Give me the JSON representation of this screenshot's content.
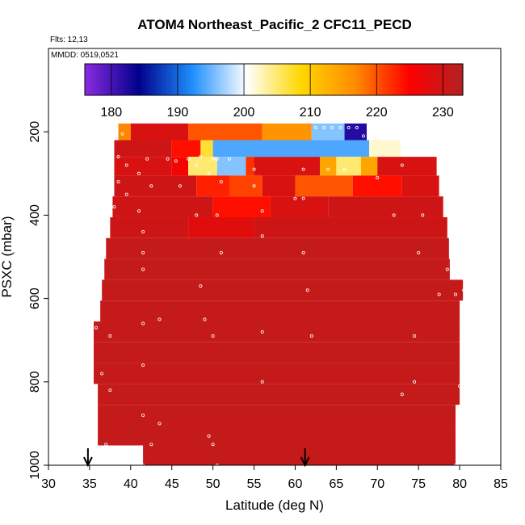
{
  "chart_data": {
    "type": "heatmap",
    "title": "ATOM4 Northeast_Pacific_2 CFC11_PECD",
    "annotations": {
      "flights": "Flts: 12,13",
      "dates": "MMDD: 0519,0521"
    },
    "xlabel": "Latitude (deg N)",
    "ylabel": "PSXC (mbar)",
    "xlim": [
      30,
      85
    ],
    "ylim": [
      1000,
      0
    ],
    "xticks": [
      "30",
      "35",
      "40",
      "45",
      "50",
      "55",
      "60",
      "65",
      "70",
      "75",
      "80",
      "85"
    ],
    "yticks": [
      "200",
      "400",
      "600",
      "800",
      "1000"
    ],
    "colorbar": {
      "min": 176,
      "max": 233,
      "ticks": [
        "180",
        "190",
        "200",
        "210",
        "220",
        "230"
      ],
      "stops": [
        "#8b2be2",
        "#00008b",
        "#1e90ff",
        "#ffffff",
        "#ffd700",
        "#ff8c00",
        "#ff0000",
        "#b22222"
      ]
    },
    "layers": [
      {
        "p": 200,
        "segments": [
          {
            "x0": 38.5,
            "x1": 40,
            "v": 217
          },
          {
            "x0": 40,
            "x1": 47,
            "v": 229
          },
          {
            "x0": 47,
            "x1": 56,
            "v": 220
          },
          {
            "x0": 56,
            "x1": 62,
            "v": 216
          },
          {
            "x0": 62,
            "x1": 66,
            "v": 196
          },
          {
            "x0": 66,
            "x1": 68.7,
            "v": 182
          }
        ]
      },
      {
        "p": 240,
        "segments": [
          {
            "x0": 38,
            "x1": 45,
            "v": 230
          },
          {
            "x0": 45,
            "x1": 48.5,
            "v": 224
          },
          {
            "x0": 48.5,
            "x1": 50,
            "v": 207
          },
          {
            "x0": 50,
            "x1": 69,
            "v": 194
          },
          {
            "x0": 69,
            "x1": 72.8,
            "v": 202
          }
        ]
      },
      {
        "p": 280,
        "segments": [
          {
            "x0": 38,
            "x1": 45,
            "v": 229
          },
          {
            "x0": 45,
            "x1": 47,
            "v": 226
          },
          {
            "x0": 47,
            "x1": 50.5,
            "v": 205
          },
          {
            "x0": 50.5,
            "x1": 54,
            "v": 196
          },
          {
            "x0": 54,
            "x1": 55,
            "v": 222
          },
          {
            "x0": 55,
            "x1": 63,
            "v": 229
          },
          {
            "x0": 63,
            "x1": 65,
            "v": 214
          },
          {
            "x0": 65,
            "x1": 68,
            "v": 205
          },
          {
            "x0": 68,
            "x1": 70,
            "v": 214
          },
          {
            "x0": 70,
            "x1": 77.2,
            "v": 229
          }
        ]
      },
      {
        "p": 330,
        "segments": [
          {
            "x0": 38,
            "x1": 48,
            "v": 230
          },
          {
            "x0": 48,
            "x1": 52,
            "v": 223
          },
          {
            "x0": 52,
            "x1": 56,
            "v": 221
          },
          {
            "x0": 56,
            "x1": 60,
            "v": 229
          },
          {
            "x0": 60,
            "x1": 67,
            "v": 220
          },
          {
            "x0": 67,
            "x1": 73,
            "v": 224
          },
          {
            "x0": 73,
            "x1": 77.5,
            "v": 229
          }
        ]
      },
      {
        "p": 380,
        "segments": [
          {
            "x0": 37.8,
            "x1": 50,
            "v": 230
          },
          {
            "x0": 50,
            "x1": 57,
            "v": 224
          },
          {
            "x0": 57,
            "x1": 64,
            "v": 229
          },
          {
            "x0": 64,
            "x1": 78,
            "v": 230
          }
        ]
      },
      {
        "p": 430,
        "segments": [
          {
            "x0": 37.5,
            "x1": 47,
            "v": 230
          },
          {
            "x0": 47,
            "x1": 55,
            "v": 228
          },
          {
            "x0": 55,
            "x1": 78.5,
            "v": 230
          }
        ]
      },
      {
        "p": 480,
        "segments": [
          {
            "x0": 37,
            "x1": 78.7,
            "v": 231
          }
        ]
      },
      {
        "p": 530,
        "segments": [
          {
            "x0": 36.8,
            "x1": 78.8,
            "v": 231
          }
        ]
      },
      {
        "p": 580,
        "segments": [
          {
            "x0": 36.5,
            "x1": 80.4,
            "v": 231
          }
        ]
      },
      {
        "p": 630,
        "segments": [
          {
            "x0": 36.3,
            "x1": 80,
            "v": 231
          }
        ]
      },
      {
        "p": 680,
        "segments": [
          {
            "x0": 35.5,
            "x1": 80,
            "v": 231
          }
        ]
      },
      {
        "p": 730,
        "segments": [
          {
            "x0": 35.5,
            "x1": 80,
            "v": 231
          }
        ]
      },
      {
        "p": 780,
        "segments": [
          {
            "x0": 35.5,
            "x1": 80,
            "v": 231
          }
        ]
      },
      {
        "p": 830,
        "segments": [
          {
            "x0": 36,
            "x1": 80,
            "v": 231
          }
        ]
      },
      {
        "p": 880,
        "segments": [
          {
            "x0": 36,
            "x1": 79.5,
            "v": 231
          }
        ]
      },
      {
        "p": 930,
        "segments": [
          {
            "x0": 36,
            "x1": 79.5,
            "v": 231
          }
        ]
      },
      {
        "p": 975,
        "segments": [
          {
            "x0": 41.5,
            "x1": 79.5,
            "v": 231
          }
        ]
      }
    ],
    "points": [
      [
        39,
        205
      ],
      [
        42,
        265
      ],
      [
        44.5,
        265
      ],
      [
        47,
        265
      ],
      [
        50,
        265
      ],
      [
        52,
        265
      ],
      [
        62.5,
        190
      ],
      [
        63.5,
        190
      ],
      [
        64.5,
        190
      ],
      [
        65.5,
        190
      ],
      [
        66.5,
        190
      ],
      [
        67.5,
        190
      ],
      [
        68.3,
        210
      ],
      [
        38.5,
        260
      ],
      [
        39.5,
        280
      ],
      [
        41,
        300
      ],
      [
        45.5,
        270
      ],
      [
        48,
        280
      ],
      [
        48.5,
        260
      ],
      [
        49.5,
        300
      ],
      [
        50.5,
        265
      ],
      [
        55,
        290
      ],
      [
        61,
        290
      ],
      [
        64,
        290
      ],
      [
        66,
        290
      ],
      [
        38.5,
        320
      ],
      [
        39.5,
        350
      ],
      [
        42.5,
        330
      ],
      [
        46,
        330
      ],
      [
        51,
        320
      ],
      [
        55,
        330
      ],
      [
        60,
        360
      ],
      [
        61,
        360
      ],
      [
        70,
        310
      ],
      [
        73,
        280
      ],
      [
        38,
        380
      ],
      [
        41,
        390
      ],
      [
        48,
        400
      ],
      [
        50.5,
        400
      ],
      [
        56,
        390
      ],
      [
        72,
        400
      ],
      [
        75.5,
        400
      ],
      [
        41.5,
        440
      ],
      [
        56,
        450
      ],
      [
        41.5,
        490
      ],
      [
        51,
        490
      ],
      [
        61,
        490
      ],
      [
        75,
        490
      ],
      [
        41.5,
        530
      ],
      [
        78.5,
        530
      ],
      [
        48.5,
        570
      ],
      [
        61.5,
        580
      ],
      [
        77.5,
        590
      ],
      [
        79.5,
        590
      ],
      [
        80.5,
        580
      ],
      [
        35.8,
        670
      ],
      [
        37.5,
        690
      ],
      [
        41.5,
        660
      ],
      [
        43.5,
        650
      ],
      [
        49,
        650
      ],
      [
        50,
        690
      ],
      [
        56,
        680
      ],
      [
        62,
        690
      ],
      [
        74.5,
        690
      ],
      [
        36.5,
        780
      ],
      [
        37.5,
        820
      ],
      [
        41.5,
        760
      ],
      [
        56,
        800
      ],
      [
        73,
        830
      ],
      [
        74.5,
        800
      ],
      [
        80,
        810
      ],
      [
        41.5,
        880
      ],
      [
        43.5,
        900
      ],
      [
        49.5,
        930
      ],
      [
        50,
        950
      ],
      [
        42.5,
        950
      ],
      [
        36,
        960
      ],
      [
        37,
        950
      ],
      [
        41.5,
        1000
      ],
      [
        50.5,
        1000
      ],
      [
        79.5,
        1000
      ]
    ],
    "arrows_x": [
      34.8,
      61.2
    ]
  }
}
